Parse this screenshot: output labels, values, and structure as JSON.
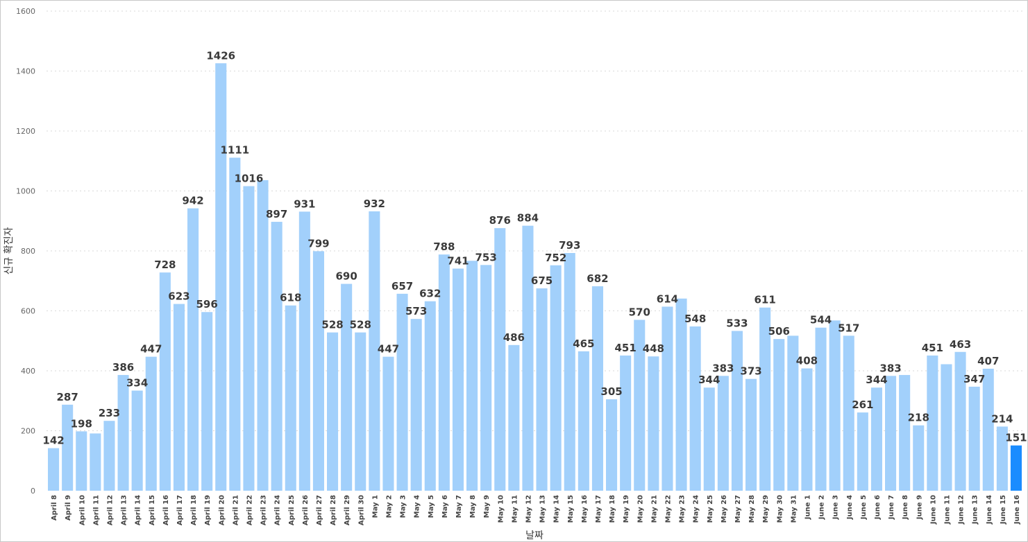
{
  "chart_data": {
    "type": "bar",
    "title": "",
    "xlabel": "날짜",
    "ylabel": "신규 확진자",
    "ylim": [
      0,
      1600
    ],
    "yticks": [
      0,
      200,
      400,
      600,
      800,
      1000,
      1200,
      1400,
      1600
    ],
    "grid": true,
    "colors": {
      "bar": "#a2d0fb",
      "highlight": "#1a8cff"
    },
    "highlight_category": "June 16",
    "categories": [
      "April 8",
      "April 9",
      "April 10",
      "April 11",
      "April 12",
      "April 13",
      "April 14",
      "April 15",
      "April 16",
      "April 17",
      "April 18",
      "April 19",
      "April 20",
      "April 21",
      "April 22",
      "April 23",
      "April 24",
      "April 25",
      "April 26",
      "April 27",
      "April 28",
      "April 29",
      "April 30",
      "May 1",
      "May 2",
      "May 3",
      "May 4",
      "May 5",
      "May 6",
      "May 7",
      "May 8",
      "May 9",
      "May 10",
      "May 11",
      "May 12",
      "May 13",
      "May 14",
      "May 15",
      "May 16",
      "May 17",
      "May 18",
      "May 19",
      "May 20",
      "May 21",
      "May 22",
      "May 23",
      "May 24",
      "May 25",
      "May 26",
      "May 27",
      "May 28",
      "May 29",
      "May 30",
      "May 31",
      "June 1",
      "June 2",
      "June 3",
      "June 4",
      "June 5",
      "June 6",
      "June 7",
      "June 8",
      "June 9",
      "June 10",
      "June 11",
      "June 12",
      "June 13",
      "June 14",
      "June 15",
      "June 16"
    ],
    "values": [
      142,
      287,
      198,
      191,
      233,
      386,
      334,
      447,
      728,
      623,
      942,
      596,
      1426,
      1111,
      1016,
      1036,
      897,
      618,
      931,
      799,
      528,
      690,
      528,
      932,
      447,
      657,
      573,
      632,
      788,
      741,
      767,
      753,
      876,
      486,
      884,
      675,
      752,
      793,
      465,
      682,
      305,
      451,
      570,
      448,
      614,
      641,
      548,
      344,
      383,
      533,
      373,
      611,
      506,
      517,
      408,
      544,
      568,
      517,
      261,
      344,
      383,
      386,
      218,
      451,
      422,
      463,
      347,
      407,
      214,
      151
    ],
    "data_labels": [
      "142",
      "287",
      "198",
      "",
      "233",
      "386",
      "334",
      "447",
      "728",
      "623",
      "942",
      "596",
      "1426",
      "1111",
      "1016",
      "",
      "897",
      "618",
      "931",
      "799",
      "528",
      "690",
      "528",
      "932",
      "447",
      "657",
      "573",
      "632",
      "788",
      "741",
      "",
      "753",
      "876",
      "486",
      "884",
      "675",
      "752",
      "793",
      "465",
      "682",
      "305",
      "451",
      "570",
      "448",
      "614",
      "",
      "548",
      "344",
      "383",
      "533",
      "373",
      "611",
      "506",
      "",
      "408",
      "544",
      "",
      "517",
      "261",
      "344",
      "383",
      "",
      "218",
      "451",
      "",
      "463",
      "347",
      "407",
      "214",
      "151"
    ]
  }
}
